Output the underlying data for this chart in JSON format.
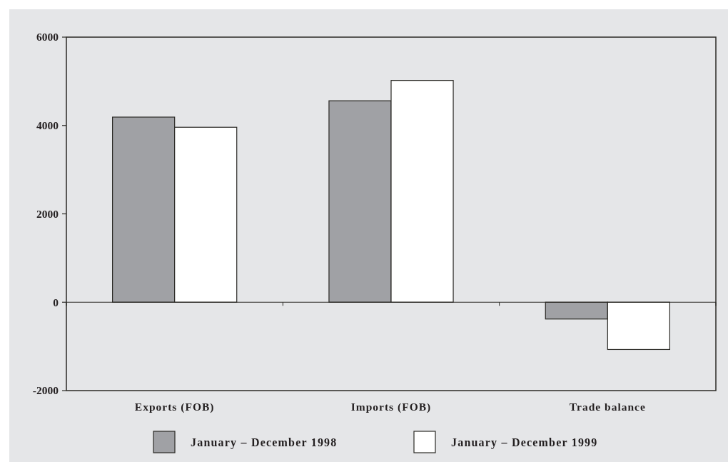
{
  "chart_data": {
    "type": "bar",
    "categories": [
      "Exports (FOB)",
      "Imports (FOB)",
      "Trade balance"
    ],
    "series": [
      {
        "name": "January – December 1998",
        "color": "#a0a1a5",
        "values": [
          4190,
          4560,
          -380
        ]
      },
      {
        "name": "January – December 1999",
        "color": "#ffffff",
        "values": [
          3960,
          5020,
          -1070
        ]
      }
    ],
    "ylim": [
      -2000,
      6000
    ],
    "yticks": [
      -2000,
      0,
      2000,
      4000,
      6000
    ],
    "legend": "bottom"
  }
}
